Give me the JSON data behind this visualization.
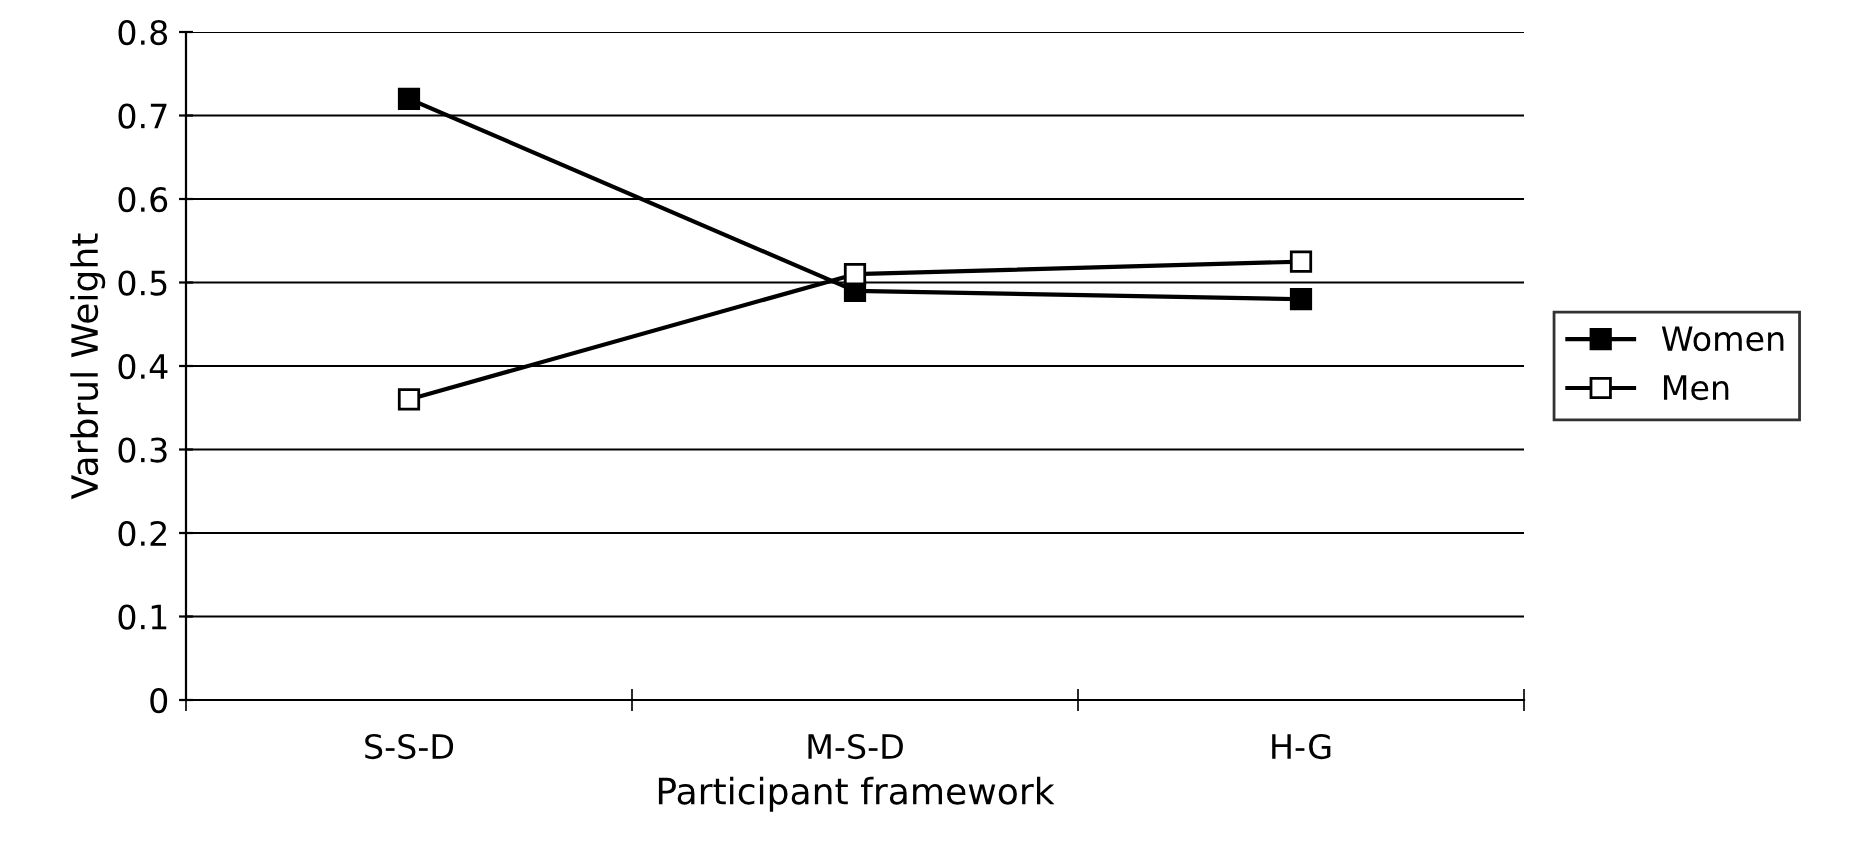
{
  "chart_data": {
    "type": "line",
    "xlabel": "Participant framework",
    "ylabel": "Varbrul Weight",
    "categories": [
      "S-S-D",
      "M-S-D",
      "H-G"
    ],
    "series": [
      {
        "name": "Women",
        "color": "#000000",
        "marker": "square",
        "values": [
          0.72,
          0.49,
          0.48
        ]
      },
      {
        "name": "Men",
        "color": "#000000",
        "marker": "square",
        "values": [
          0.36,
          0.51,
          0.525
        ]
      }
    ],
    "ylim": [
      0,
      0.8
    ],
    "yticks": [
      0,
      0.1,
      0.2,
      0.3,
      0.4,
      0.5,
      0.6,
      0.7,
      0.8
    ],
    "grid": "y",
    "legend": "right",
    "line_style": "solid"
  }
}
